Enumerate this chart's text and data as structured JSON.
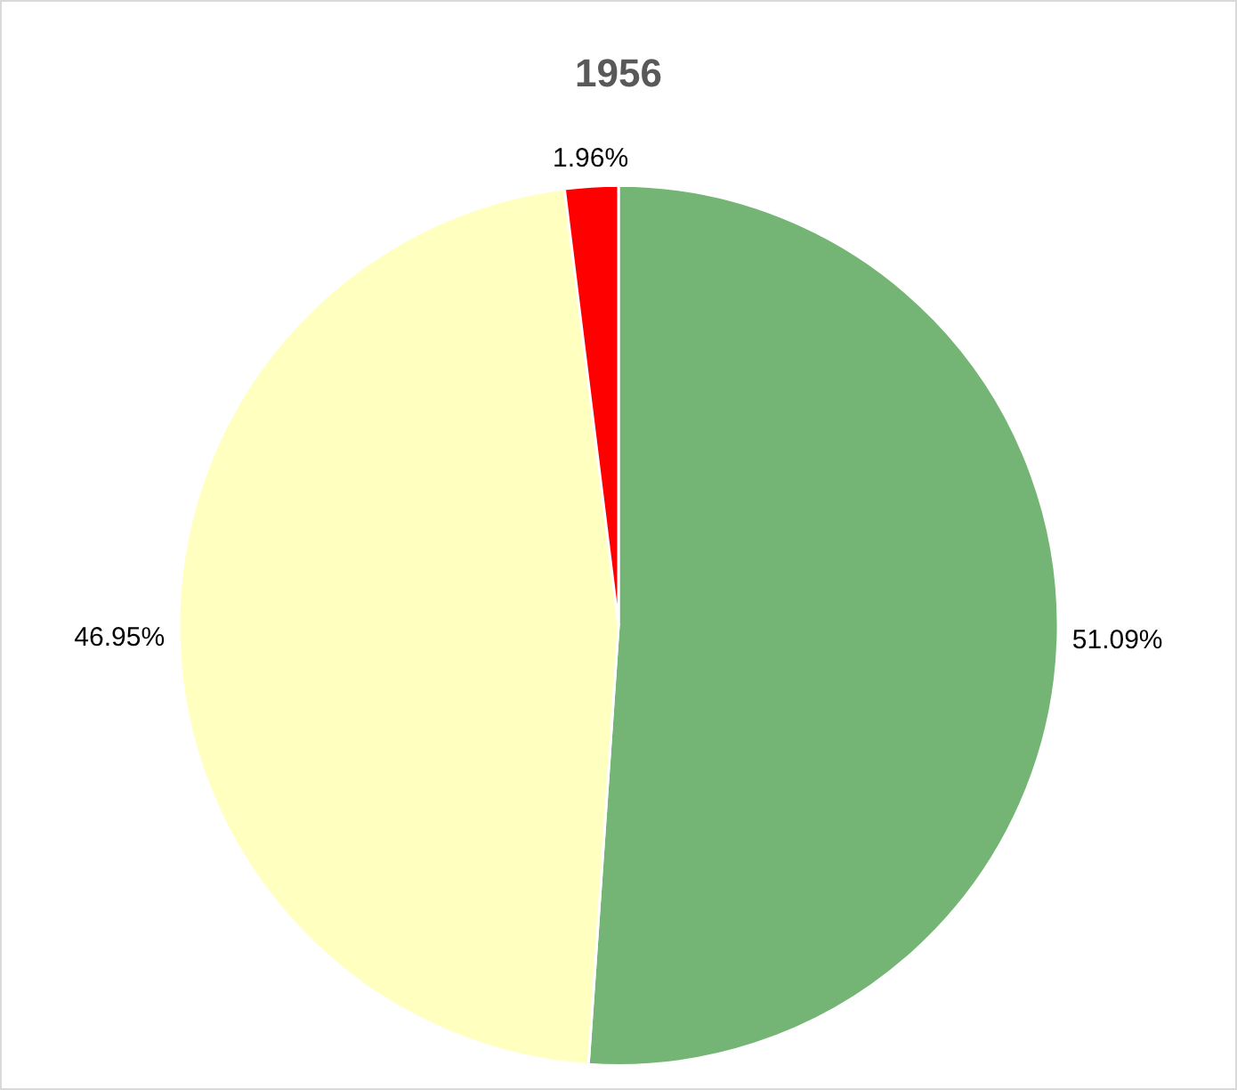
{
  "chart_data": {
    "type": "pie",
    "title": "1956",
    "categories": [
      null,
      null,
      null
    ],
    "values": [
      51.09,
      46.95,
      1.96
    ],
    "colors": [
      "#74b474",
      "#ffffc0",
      "#ff0000"
    ],
    "value_labels": [
      "51.09%",
      "46.95%",
      "1.96%"
    ],
    "legend": false
  }
}
